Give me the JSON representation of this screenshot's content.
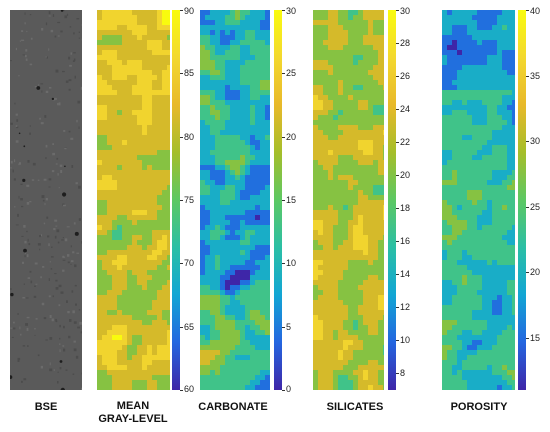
{
  "chart_data": {
    "type": "heatmap",
    "panels": [
      {
        "key": "bse",
        "label_lines": [
          "BSE"
        ],
        "has_colorbar": false,
        "ticks": []
      },
      {
        "key": "gray",
        "label_lines": [
          "MEAN",
          "GRAY-LEVEL"
        ],
        "has_colorbar": true,
        "range": [
          60,
          90
        ],
        "ticks": [
          60,
          65,
          70,
          75,
          80,
          85,
          90
        ]
      },
      {
        "key": "carb",
        "label_lines": [
          "CARBONATE"
        ],
        "has_colorbar": true,
        "range": [
          0,
          30
        ],
        "ticks": [
          0,
          5,
          10,
          15,
          20,
          25,
          30
        ]
      },
      {
        "key": "sil",
        "label_lines": [
          "SILICATES"
        ],
        "has_colorbar": true,
        "range": [
          7,
          30
        ],
        "ticks": [
          8,
          10,
          12,
          14,
          16,
          18,
          20,
          22,
          24,
          26,
          28,
          30
        ]
      },
      {
        "key": "por",
        "label_lines": [
          "POROSITY"
        ],
        "has_colorbar": true,
        "range": [
          11,
          40
        ],
        "ticks": [
          15,
          20,
          25,
          30,
          35,
          40
        ]
      }
    ],
    "colormap": [
      "#3e26a8",
      "#2466e0",
      "#12a6d4",
      "#2bbfa5",
      "#5cc863",
      "#a5be2a",
      "#e8b92a",
      "#f3d82f",
      "#f9fb0e"
    ],
    "grid": false,
    "legend": "colorbars-right"
  }
}
